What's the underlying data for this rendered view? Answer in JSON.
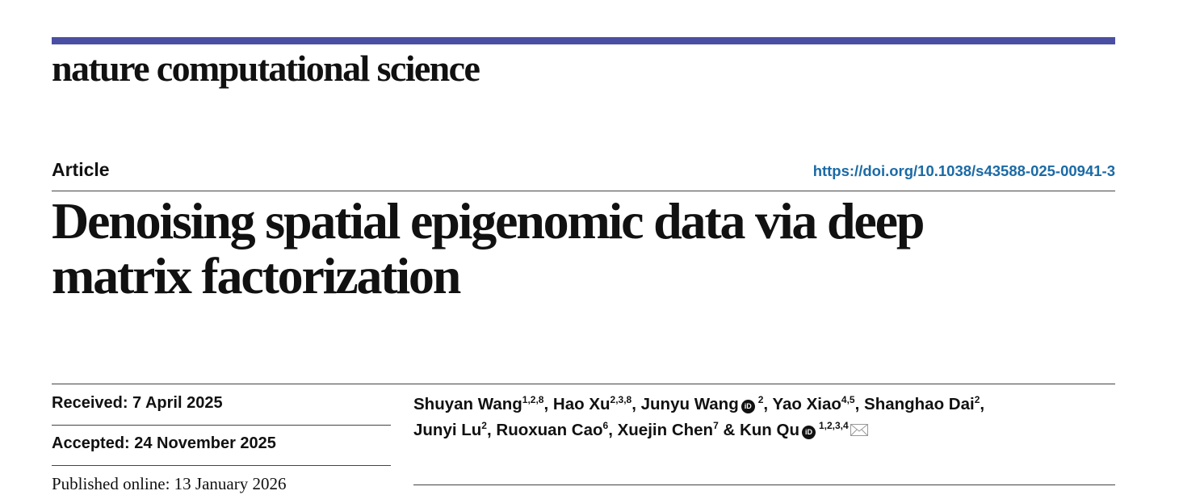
{
  "header": {
    "journal": "nature computational science",
    "article_type": "Article",
    "doi": "https://doi.org/10.1038/s43588-025-00941-3"
  },
  "title": {
    "lines": [
      "Denoising spatial epigenomic data via deep",
      "matrix factorization"
    ]
  },
  "dates": {
    "received": "Received: 7 April 2025",
    "accepted": "Accepted: 24 November 2025",
    "published": "Published online: 13 January 2026"
  },
  "authors": {
    "lines": [
      [
        {
          "name": "Shuyan Wang",
          "affiliations": "1,2,8",
          "sep": ", "
        },
        {
          "name": "Hao Xu",
          "affiliations": "2,3,8",
          "sep": ", "
        },
        {
          "name": "Junyu Wang",
          "orcid": true,
          "affiliations": "2",
          "sep": ", "
        },
        {
          "name": "Yao Xiao",
          "affiliations": "4,5",
          "sep": ", "
        },
        {
          "name": "Shanghao Dai",
          "affiliations": "2",
          "sep": ","
        }
      ],
      [
        {
          "name": "Junyi Lu",
          "affiliations": "2",
          "sep": ", "
        },
        {
          "name": "Ruoxuan Cao",
          "affiliations": "6",
          "sep": ", "
        },
        {
          "name": "Xuejin Chen",
          "affiliations": "7",
          "sep": " & "
        },
        {
          "name": "Kun Qu",
          "orcid": true,
          "affiliations": "1,2,3,4",
          "corresponding": true
        }
      ]
    ]
  }
}
